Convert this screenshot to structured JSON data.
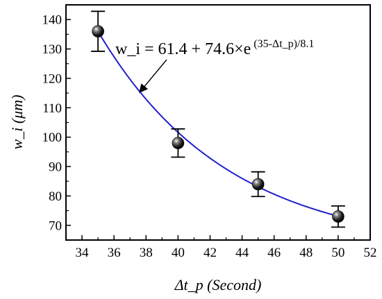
{
  "chart_data": {
    "type": "scatter",
    "xlabel": "Δt_p (Second)",
    "ylabel": "w_i (μm)",
    "xlim": [
      33,
      52
    ],
    "ylim": [
      65,
      145
    ],
    "x_ticks": [
      34,
      36,
      38,
      40,
      42,
      44,
      46,
      48,
      50,
      52
    ],
    "y_ticks": [
      70,
      80,
      90,
      100,
      110,
      120,
      130,
      140
    ],
    "grid": false,
    "series": [
      {
        "kind": "points",
        "x": [
          35,
          40,
          45,
          50
        ],
        "y": [
          136,
          98,
          84,
          73
        ],
        "error": [
          6.8,
          4.8,
          4.2,
          3.6
        ],
        "color": "#000000"
      },
      {
        "kind": "fit",
        "model": "w_i = 61.4 + 74.6*exp((35 - dt)/8.1)",
        "a": 61.4,
        "b": 74.6,
        "x0": 35,
        "tau": 8.1,
        "x_range": [
          35,
          50
        ],
        "color": "#1f1fcc"
      }
    ],
    "annotation": {
      "text_main": "w_i = 61.4 + 74.6×e",
      "text_exponent": "(35-Δt_p)/8.1",
      "arrow_to": [
        38,
        115
      ]
    }
  }
}
